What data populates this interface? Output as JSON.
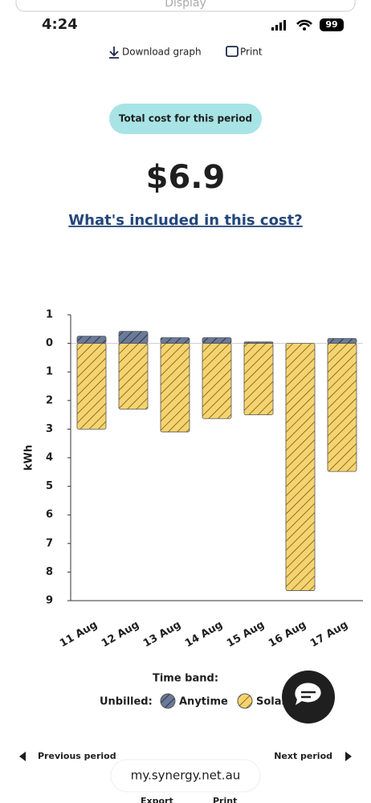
{
  "header": {
    "display": "Display",
    "time": "4:24",
    "battery": "99",
    "download": "Download graph",
    "print": "Print"
  },
  "cost": {
    "label": "Total cost for this period",
    "amount": "$6.9",
    "link": "What's included in this cost?"
  },
  "chart_data": {
    "type": "bar",
    "y_label": "kWh",
    "categories": [
      "11 Aug",
      "12 Aug",
      "13 Aug",
      "14 Aug",
      "15 Aug",
      "16 Aug",
      "17 Aug"
    ],
    "series": [
      {
        "name": "Anytime",
        "color": "#6b7a99",
        "values": [
          0.25,
          0.42,
          0.2,
          0.2,
          0.05,
          0,
          0.17
        ]
      },
      {
        "name": "Solar",
        "color": "#f6d36e",
        "values": [
          -3.0,
          -2.3,
          -3.1,
          -2.63,
          -2.5,
          -8.65,
          -4.48
        ]
      }
    ],
    "ylim": [
      -9,
      1
    ],
    "yticks": [
      1,
      0,
      {
        "value": -1,
        "label": "1"
      },
      {
        "value": -2,
        "label": "2"
      },
      {
        "value": -3,
        "label": "3"
      },
      {
        "value": -4,
        "label": "4"
      },
      {
        "value": -5,
        "label": "5"
      },
      {
        "value": -6,
        "label": "6"
      },
      {
        "value": -7,
        "label": "7"
      },
      {
        "value": -8,
        "label": "8"
      },
      {
        "value": -9,
        "label": "9"
      }
    ],
    "legend_title": "Time band:",
    "legend_group": "Unbilled:"
  },
  "footer": {
    "previous": "Previous period",
    "next": "Next period",
    "url": "my.synergy.net.au",
    "export": "Export",
    "print": "Print"
  }
}
